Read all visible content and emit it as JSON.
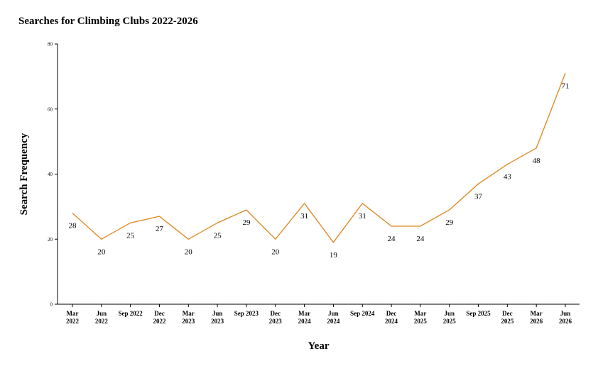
{
  "chart_data": {
    "type": "line",
    "title": "Searches for Climbing Clubs 2022-2026",
    "xlabel": "Year",
    "ylabel": "Search Frequency",
    "ylim": [
      0,
      80
    ],
    "yticks": [
      "0",
      "20",
      "40",
      "60",
      "80"
    ],
    "categories": [
      [
        "Mar",
        "2022"
      ],
      [
        "Jun",
        "2022"
      ],
      [
        "Sep 2022"
      ],
      [
        "Dec",
        "2022"
      ],
      [
        "Mar",
        "2023"
      ],
      [
        "Jun",
        "2023"
      ],
      [
        "Sep 2023"
      ],
      [
        "Dec",
        "2023"
      ],
      [
        "Mar",
        "2024"
      ],
      [
        "Jun",
        "2024"
      ],
      [
        "Sep 2024"
      ],
      [
        "Dec",
        "2024"
      ],
      [
        "Mar",
        "2025"
      ],
      [
        "Jun",
        "2025"
      ],
      [
        "Sep 2025"
      ],
      [
        "Dec",
        "2025"
      ],
      [
        "Mar",
        "2026"
      ],
      [
        "Jun",
        "2026"
      ]
    ],
    "series": [
      {
        "values": [
          28,
          20,
          25,
          27,
          20,
          25,
          29,
          20,
          31,
          19,
          31,
          24,
          24,
          29,
          37,
          43,
          48,
          71
        ],
        "labels": [
          "28",
          "20",
          "25",
          "27",
          "20",
          "25",
          "29",
          "20",
          "31",
          "19",
          "31",
          "24",
          "24",
          "29",
          "37",
          "43",
          "48",
          "71"
        ],
        "color": "#E08B2A"
      }
    ],
    "grid": false,
    "legend": "none"
  }
}
